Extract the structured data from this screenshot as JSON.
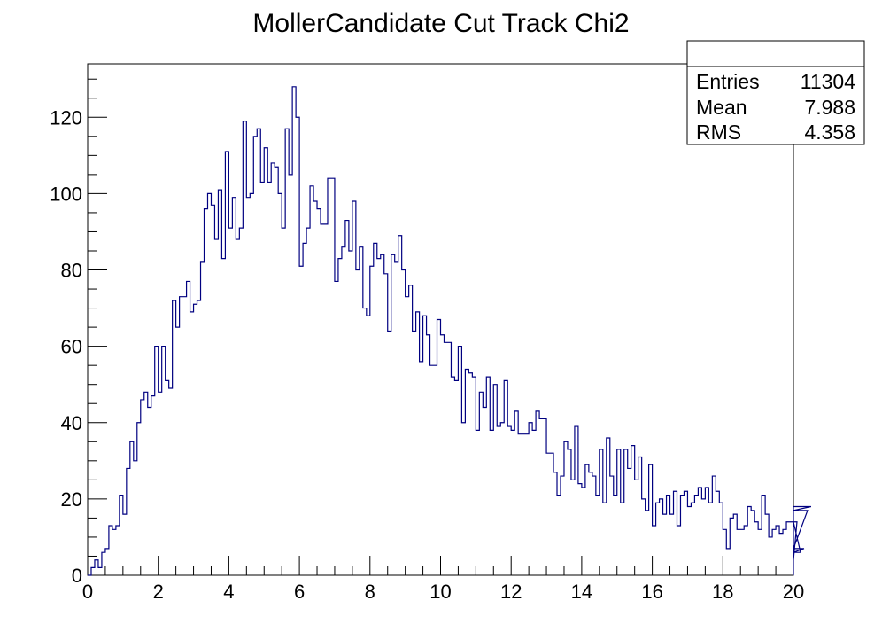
{
  "chart_data": {
    "type": "histogram",
    "title": "MollerCandidate Cut Track Chi2",
    "xlabel": "",
    "ylabel": "",
    "xlim": [
      0,
      20
    ],
    "ylim": [
      0,
      134
    ],
    "x_ticks": [
      0,
      2,
      4,
      6,
      8,
      10,
      12,
      14,
      16,
      18,
      20
    ],
    "y_ticks": [
      0,
      20,
      40,
      60,
      80,
      100,
      120
    ],
    "bin_width": 0.1,
    "line_color": "#000080",
    "values": [
      0,
      2,
      4,
      2,
      6,
      7,
      13,
      12,
      13,
      21,
      16,
      28,
      35,
      30,
      40,
      46,
      48,
      44,
      47,
      60,
      48,
      60,
      51,
      49,
      72,
      65,
      73,
      73,
      77,
      69,
      71,
      72,
      82,
      96,
      100,
      97,
      88,
      101,
      83,
      111,
      91,
      99,
      88,
      91,
      119,
      99,
      100,
      115,
      117,
      103,
      112,
      103,
      108,
      107,
      100,
      91,
      117,
      105,
      128,
      120,
      81,
      87,
      91,
      102,
      98,
      96,
      92,
      92,
      104,
      104,
      77,
      83,
      86,
      93,
      85,
      98,
      80,
      86,
      70,
      68,
      81,
      87,
      83,
      84,
      79,
      64,
      84,
      82,
      89,
      80,
      73,
      76,
      64,
      69,
      56,
      68,
      63,
      55,
      55,
      67,
      63,
      61,
      61,
      52,
      51,
      60,
      40,
      54,
      53,
      52,
      38,
      48,
      44,
      52,
      38,
      50,
      39,
      40,
      51,
      39,
      38,
      43,
      37,
      37,
      37,
      40,
      38,
      43,
      41,
      41,
      32,
      32,
      27,
      21,
      26,
      35,
      33,
      25,
      39,
      24,
      23,
      29,
      27,
      26,
      21,
      33,
      19,
      36,
      26,
      21,
      33,
      19,
      33,
      28,
      34,
      25,
      31,
      20,
      17,
      29,
      13,
      19,
      20,
      16,
      21,
      16,
      22,
      13,
      21,
      22,
      18,
      19,
      21,
      23,
      20,
      23,
      19,
      26,
      22,
      19,
      12,
      7,
      15,
      16,
      12,
      12,
      13,
      18,
      17,
      14,
      12,
      21,
      16,
      10,
      12,
      13,
      11,
      12,
      14,
      14,
      4,
      14,
      6,
      7,
      17,
      18
    ]
  },
  "stats": {
    "entries_label": "Entries",
    "entries_value": "11304",
    "mean_label": "Mean",
    "mean_value": "7.988",
    "rms_label": "RMS",
    "rms_value": "4.358"
  }
}
